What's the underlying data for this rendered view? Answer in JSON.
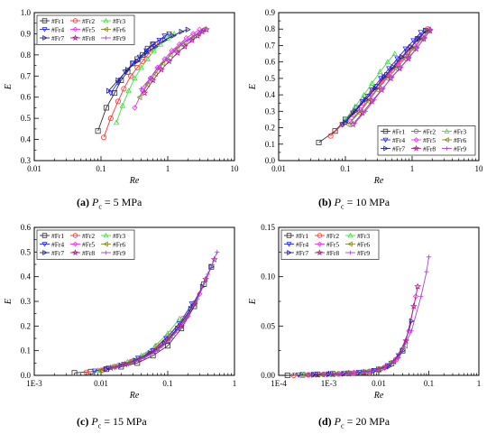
{
  "legend_markers": {
    "#Fr1": {
      "color": "#333333",
      "marker": "square"
    },
    "#Fr2": {
      "color": "#ff3333",
      "marker": "circle"
    },
    "#Fr3": {
      "color": "#44dd44",
      "marker": "triangle-up"
    },
    "#Fr4": {
      "color": "#2222ff",
      "marker": "triangle-down"
    },
    "#Fr5": {
      "color": "#ee33ee",
      "marker": "diamond"
    },
    "#Fr6": {
      "color": "#888822",
      "marker": "triangle-left"
    },
    "#Fr7": {
      "color": "#222288",
      "marker": "triangle-right"
    },
    "#Fr8": {
      "color": "#aa2288",
      "marker": "star"
    },
    "#Fr9": {
      "color": "#aa44dd",
      "marker": "plus"
    }
  },
  "captions": [
    {
      "label": "(a)",
      "text": " P",
      "sub": "c",
      "rest": " = 5 MPa"
    },
    {
      "label": "(b)",
      "text": " P",
      "sub": "c",
      "rest": " = 10 MPa"
    },
    {
      "label": "(c)",
      "text": " P",
      "sub": "c",
      "rest": " = 15 MPa"
    },
    {
      "label": "(d)",
      "text": " P",
      "sub": "c",
      "rest": " = 20 MPa"
    }
  ],
  "chart_data": [
    {
      "type": "scatter",
      "xlabel": "Re",
      "ylabel": "E",
      "xscale": "log",
      "xlim": [
        0.01,
        10
      ],
      "xticks": [
        0.01,
        0.1,
        1,
        10
      ],
      "xticklabels": [
        "0.01",
        "0.1",
        "1",
        "10"
      ],
      "ylim": [
        0.3,
        1.0
      ],
      "yticks": [
        0.3,
        0.4,
        0.5,
        0.6,
        0.7,
        0.8,
        0.9,
        1.0
      ],
      "yticklabels": [
        "0.3",
        "0.4",
        "0.5",
        "0.6",
        "0.7",
        "0.8",
        "0.9",
        "1.0"
      ],
      "legend": "top-left",
      "legend_cols": 3,
      "series": [
        {
          "name": "#Fr1",
          "x": [
            0.09,
            0.12,
            0.16,
            0.2,
            0.25,
            0.3,
            0.35,
            0.42,
            0.5,
            0.6
          ],
          "y": [
            0.44,
            0.55,
            0.62,
            0.68,
            0.72,
            0.76,
            0.78,
            0.8,
            0.83,
            0.85
          ]
        },
        {
          "name": "#Fr2",
          "x": [
            0.11,
            0.14,
            0.18,
            0.22,
            0.28,
            0.35,
            0.42,
            0.5,
            0.6,
            0.75
          ],
          "y": [
            0.41,
            0.5,
            0.58,
            0.64,
            0.7,
            0.74,
            0.77,
            0.8,
            0.83,
            0.86
          ]
        },
        {
          "name": "#Fr3",
          "x": [
            0.17,
            0.21,
            0.26,
            0.32,
            0.4,
            0.5,
            0.62,
            0.78,
            1.0,
            1.25
          ],
          "y": [
            0.48,
            0.56,
            0.63,
            0.69,
            0.74,
            0.78,
            0.82,
            0.85,
            0.88,
            0.9
          ]
        },
        {
          "name": "#Fr4",
          "x": [
            0.14,
            0.18,
            0.23,
            0.3,
            0.38,
            0.48,
            0.6,
            0.75,
            0.9,
            1.05
          ],
          "y": [
            0.62,
            0.67,
            0.72,
            0.76,
            0.79,
            0.82,
            0.85,
            0.87,
            0.89,
            0.9
          ]
        },
        {
          "name": "#Fr5",
          "x": [
            0.32,
            0.42,
            0.55,
            0.7,
            0.9,
            1.15,
            1.5,
            1.9,
            2.4,
            3.0
          ],
          "y": [
            0.55,
            0.63,
            0.69,
            0.74,
            0.78,
            0.82,
            0.85,
            0.88,
            0.9,
            0.92
          ]
        },
        {
          "name": "#Fr6",
          "x": [
            0.38,
            0.5,
            0.65,
            0.85,
            1.1,
            1.4,
            1.8,
            2.3,
            2.9,
            3.4
          ],
          "y": [
            0.6,
            0.66,
            0.71,
            0.76,
            0.8,
            0.83,
            0.86,
            0.88,
            0.9,
            0.92
          ]
        },
        {
          "name": "#Fr7",
          "x": [
            0.13,
            0.18,
            0.25,
            0.35,
            0.48,
            0.65,
            0.9,
            1.2,
            1.6,
            2.0
          ],
          "y": [
            0.63,
            0.68,
            0.73,
            0.77,
            0.81,
            0.84,
            0.87,
            0.89,
            0.91,
            0.92
          ]
        },
        {
          "name": "#Fr8",
          "x": [
            0.45,
            0.6,
            0.8,
            1.05,
            1.4,
            1.8,
            2.3,
            2.8,
            3.3,
            3.8
          ],
          "y": [
            0.62,
            0.68,
            0.73,
            0.77,
            0.81,
            0.84,
            0.87,
            0.89,
            0.91,
            0.92
          ]
        },
        {
          "name": "#Fr9",
          "x": [
            0.4,
            0.55,
            0.72,
            0.95,
            1.25,
            1.6,
            2.0,
            2.5,
            3.1,
            3.7
          ],
          "y": [
            0.64,
            0.69,
            0.74,
            0.78,
            0.82,
            0.85,
            0.87,
            0.89,
            0.91,
            0.92
          ]
        }
      ]
    },
    {
      "type": "scatter",
      "xlabel": "Re",
      "ylabel": "E",
      "xscale": "log",
      "xlim": [
        0.01,
        10
      ],
      "xticks": [
        0.01,
        0.1,
        1,
        10
      ],
      "xticklabels": [
        "0.01",
        "0.1",
        "1",
        "10"
      ],
      "ylim": [
        0.0,
        0.9
      ],
      "yticks": [
        0.0,
        0.1,
        0.2,
        0.3,
        0.4,
        0.5,
        0.6,
        0.7,
        0.8,
        0.9
      ],
      "yticklabels": [
        "0.0",
        "0.1",
        "0.2",
        "0.3",
        "0.4",
        "0.5",
        "0.6",
        "0.7",
        "0.8",
        "0.9"
      ],
      "legend": "bottom-right",
      "legend_cols": 3,
      "series": [
        {
          "name": "#Fr1",
          "x": [
            0.04,
            0.07,
            0.1,
            0.15,
            0.22,
            0.3,
            0.42,
            0.6,
            0.85,
            1.2,
            1.6
          ],
          "y": [
            0.11,
            0.18,
            0.25,
            0.32,
            0.39,
            0.45,
            0.52,
            0.59,
            0.66,
            0.74,
            0.79
          ]
        },
        {
          "name": "#Fr2",
          "x": [
            0.06,
            0.09,
            0.13,
            0.18,
            0.25,
            0.35,
            0.5,
            0.7,
            0.95,
            1.3,
            1.7
          ],
          "y": [
            0.15,
            0.22,
            0.28,
            0.35,
            0.42,
            0.48,
            0.55,
            0.62,
            0.69,
            0.75,
            0.8
          ]
        },
        {
          "name": "#Fr3",
          "x": [
            0.1,
            0.14,
            0.19,
            0.25,
            0.33,
            0.43,
            0.55
          ],
          "y": [
            0.25,
            0.33,
            0.4,
            0.47,
            0.54,
            0.6,
            0.65
          ]
        },
        {
          "name": "#Fr4",
          "x": [
            0.09,
            0.13,
            0.18,
            0.25,
            0.34,
            0.45,
            0.6,
            0.8,
            1.05,
            1.35
          ],
          "y": [
            0.22,
            0.29,
            0.36,
            0.43,
            0.5,
            0.56,
            0.62,
            0.68,
            0.73,
            0.78
          ]
        },
        {
          "name": "#Fr5",
          "x": [
            0.12,
            0.17,
            0.23,
            0.32,
            0.44,
            0.6,
            0.82,
            1.1,
            1.45,
            1.8
          ],
          "y": [
            0.24,
            0.31,
            0.38,
            0.45,
            0.52,
            0.58,
            0.64,
            0.7,
            0.75,
            0.8
          ]
        },
        {
          "name": "#Fr6",
          "x": [
            0.11,
            0.16,
            0.22,
            0.3,
            0.42,
            0.58,
            0.78,
            1.05,
            1.4,
            1.75
          ],
          "y": [
            0.22,
            0.29,
            0.36,
            0.43,
            0.5,
            0.56,
            0.62,
            0.68,
            0.74,
            0.79
          ]
        },
        {
          "name": "#Fr7",
          "x": [
            0.1,
            0.14,
            0.2,
            0.28,
            0.38,
            0.52,
            0.7,
            0.95,
            1.25,
            1.6
          ],
          "y": [
            0.23,
            0.3,
            0.37,
            0.44,
            0.51,
            0.57,
            0.63,
            0.69,
            0.74,
            0.79
          ]
        },
        {
          "name": "#Fr8",
          "x": [
            0.13,
            0.18,
            0.25,
            0.35,
            0.48,
            0.65,
            0.88,
            1.15,
            1.5,
            1.85
          ],
          "y": [
            0.22,
            0.29,
            0.36,
            0.43,
            0.5,
            0.56,
            0.62,
            0.68,
            0.74,
            0.79
          ]
        },
        {
          "name": "#Fr9",
          "x": [
            0.14,
            0.2,
            0.27,
            0.37,
            0.5,
            0.68,
            0.9,
            1.2,
            1.55,
            1.9
          ],
          "y": [
            0.23,
            0.3,
            0.37,
            0.44,
            0.51,
            0.57,
            0.63,
            0.69,
            0.75,
            0.8
          ]
        }
      ]
    },
    {
      "type": "scatter",
      "xlabel": "Re",
      "ylabel": "E",
      "xscale": "log",
      "xlim": [
        0.001,
        1
      ],
      "xticks": [
        0.001,
        0.01,
        0.1,
        1
      ],
      "xticklabels": [
        "1E-3",
        "0.01",
        "0.1",
        "1"
      ],
      "ylim": [
        0.0,
        0.6
      ],
      "yticks": [
        0.0,
        0.1,
        0.2,
        0.3,
        0.4,
        0.5,
        0.6
      ],
      "yticklabels": [
        "0.0",
        "0.1",
        "0.2",
        "0.3",
        "0.4",
        "0.5",
        "0.6"
      ],
      "legend": "top-left",
      "legend_cols": 3,
      "series": [
        {
          "name": "#Fr1",
          "x": [
            0.004,
            0.007,
            0.012,
            0.02,
            0.035,
            0.06,
            0.1,
            0.16,
            0.25,
            0.35,
            0.45
          ],
          "y": [
            0.01,
            0.015,
            0.025,
            0.035,
            0.05,
            0.08,
            0.12,
            0.19,
            0.28,
            0.37,
            0.44
          ]
        },
        {
          "name": "#Fr2",
          "x": [
            0.006,
            0.01,
            0.016,
            0.028,
            0.045,
            0.07,
            0.11,
            0.17
          ],
          "y": [
            0.012,
            0.02,
            0.035,
            0.055,
            0.08,
            0.12,
            0.17,
            0.23
          ]
        },
        {
          "name": "#Fr3",
          "x": [
            0.009,
            0.015,
            0.025,
            0.04,
            0.065,
            0.1,
            0.15
          ],
          "y": [
            0.02,
            0.035,
            0.055,
            0.08,
            0.12,
            0.17,
            0.23
          ]
        },
        {
          "name": "#Fr4",
          "x": [
            0.008,
            0.013,
            0.022,
            0.036,
            0.06,
            0.095,
            0.15,
            0.23
          ],
          "y": [
            0.018,
            0.03,
            0.045,
            0.07,
            0.1,
            0.15,
            0.21,
            0.29
          ]
        },
        {
          "name": "#Fr5",
          "x": [
            0.011,
            0.018,
            0.03,
            0.05,
            0.08,
            0.13,
            0.2,
            0.3
          ],
          "y": [
            0.025,
            0.04,
            0.06,
            0.085,
            0.12,
            0.17,
            0.24,
            0.33
          ]
        },
        {
          "name": "#Fr6",
          "x": [
            0.01,
            0.016,
            0.026,
            0.043,
            0.07,
            0.11,
            0.17,
            0.26
          ],
          "y": [
            0.02,
            0.035,
            0.05,
            0.075,
            0.11,
            0.16,
            0.22,
            0.3
          ]
        },
        {
          "name": "#Fr7",
          "x": [
            0.012,
            0.02,
            0.033,
            0.055,
            0.09,
            0.14,
            0.22,
            0.33,
            0.45
          ],
          "y": [
            0.025,
            0.04,
            0.06,
            0.09,
            0.13,
            0.19,
            0.27,
            0.36,
            0.44
          ]
        },
        {
          "name": "#Fr8",
          "x": [
            0.014,
            0.023,
            0.038,
            0.062,
            0.1,
            0.16,
            0.25,
            0.37,
            0.5
          ],
          "y": [
            0.03,
            0.045,
            0.065,
            0.095,
            0.14,
            0.2,
            0.29,
            0.39,
            0.47
          ]
        },
        {
          "name": "#Fr9",
          "x": [
            0.016,
            0.026,
            0.043,
            0.07,
            0.11,
            0.18,
            0.28,
            0.4,
            0.55
          ],
          "y": [
            0.03,
            0.045,
            0.07,
            0.1,
            0.15,
            0.22,
            0.31,
            0.41,
            0.5
          ]
        }
      ]
    },
    {
      "type": "scatter",
      "xlabel": "Re",
      "ylabel": "E",
      "xscale": "log",
      "xlim": [
        0.0001,
        1
      ],
      "xticks": [
        0.0001,
        0.001,
        0.01,
        0.1,
        1
      ],
      "xticklabels": [
        "1E-4",
        "1E-3",
        "0.01",
        "0.1",
        "1"
      ],
      "ylim": [
        0.0,
        0.15
      ],
      "yticks": [
        0.0,
        0.05,
        0.1,
        0.15
      ],
      "yticklabels": [
        "0.00",
        "0.05",
        "0.10",
        "0.15"
      ],
      "legend": "top-left",
      "legend_cols": 3,
      "series": [
        {
          "name": "#Fr1",
          "x": [
            0.00015,
            0.0003,
            0.0006,
            0.0012,
            0.0025,
            0.005,
            0.01,
            0.018,
            0.03
          ],
          "y": [
            0.0,
            0.0005,
            0.001,
            0.0015,
            0.002,
            0.003,
            0.006,
            0.012,
            0.025
          ]
        },
        {
          "name": "#Fr2",
          "x": [
            0.0002,
            0.0004,
            0.0008,
            0.0016,
            0.0032,
            0.0065,
            0.013,
            0.022
          ],
          "y": [
            0.0,
            0.0005,
            0.001,
            0.0015,
            0.0025,
            0.004,
            0.008,
            0.016
          ]
        },
        {
          "name": "#Fr3",
          "x": [
            0.0003,
            0.0006,
            0.0012,
            0.0024,
            0.0048,
            0.0095,
            0.017
          ],
          "y": [
            0.0005,
            0.001,
            0.0015,
            0.002,
            0.003,
            0.006,
            0.012
          ]
        },
        {
          "name": "#Fr4",
          "x": [
            0.00025,
            0.0005,
            0.001,
            0.002,
            0.004,
            0.008,
            0.015,
            0.025
          ],
          "y": [
            0.0005,
            0.001,
            0.0015,
            0.002,
            0.003,
            0.005,
            0.01,
            0.02
          ]
        },
        {
          "name": "#Fr5",
          "x": [
            0.0004,
            0.0008,
            0.0016,
            0.0032,
            0.0065,
            0.013,
            0.024,
            0.04,
            0.055
          ],
          "y": [
            0.0005,
            0.001,
            0.0015,
            0.0025,
            0.004,
            0.008,
            0.018,
            0.045,
            0.08
          ]
        },
        {
          "name": "#Fr6",
          "x": [
            0.00035,
            0.0007,
            0.0014,
            0.0028,
            0.0056,
            0.011,
            0.02,
            0.034
          ],
          "y": [
            0.0005,
            0.001,
            0.0015,
            0.002,
            0.0035,
            0.007,
            0.014,
            0.03
          ]
        },
        {
          "name": "#Fr7",
          "x": [
            0.0005,
            0.001,
            0.002,
            0.004,
            0.008,
            0.016,
            0.03,
            0.045
          ],
          "y": [
            0.0005,
            0.001,
            0.0015,
            0.0025,
            0.0045,
            0.009,
            0.025,
            0.055
          ]
        },
        {
          "name": "#Fr8",
          "x": [
            0.0006,
            0.0012,
            0.0025,
            0.005,
            0.01,
            0.02,
            0.035,
            0.05,
            0.06
          ],
          "y": [
            0.0005,
            0.001,
            0.002,
            0.003,
            0.006,
            0.014,
            0.035,
            0.07,
            0.09
          ]
        },
        {
          "name": "#Fr9",
          "x": [
            0.0008,
            0.0016,
            0.0032,
            0.0065,
            0.013,
            0.025,
            0.045,
            0.07,
            0.09,
            0.1
          ],
          "y": [
            0.0005,
            0.001,
            0.002,
            0.0035,
            0.007,
            0.018,
            0.045,
            0.08,
            0.105,
            0.12
          ]
        }
      ]
    }
  ]
}
